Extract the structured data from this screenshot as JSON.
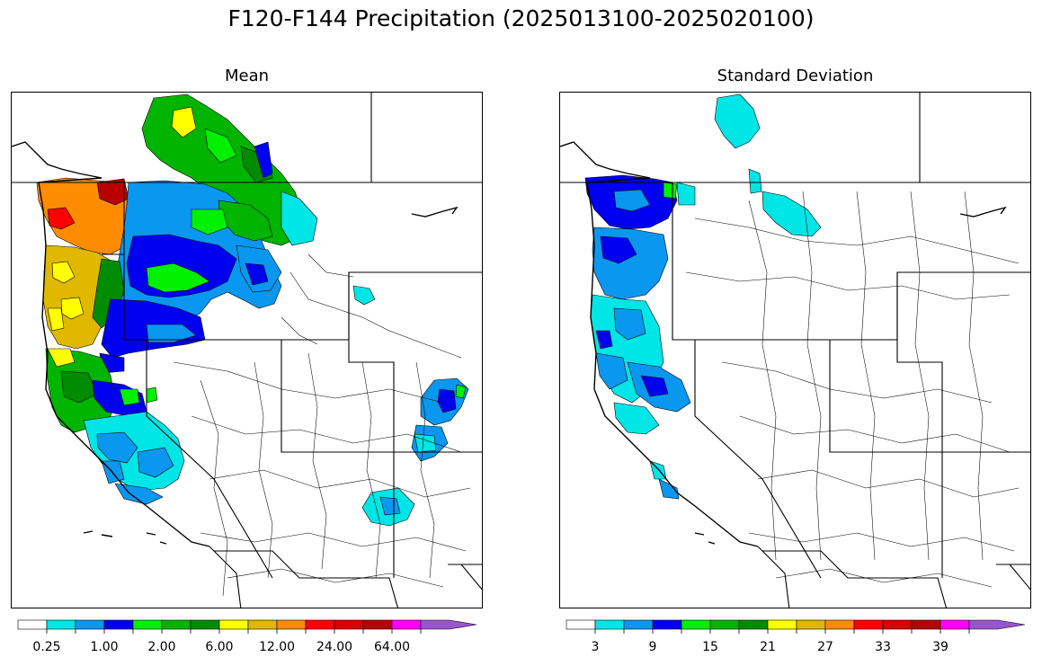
{
  "title": "F120-F144 Precipitation (2025013100-2025020100)",
  "panels": {
    "mean": {
      "title": "Mean"
    },
    "std": {
      "title": "Standard Deviation"
    }
  },
  "colors": [
    "#ffffff",
    "#00e5e5",
    "#0a97f0",
    "#0000f0",
    "#00f000",
    "#00b400",
    "#008c00",
    "#ffff00",
    "#e0b800",
    "#ff8c00",
    "#ff0000",
    "#d80000",
    "#b80000",
    "#ff00ff",
    "#9955cc"
  ],
  "colorbars": {
    "mean": {
      "labels": [
        "0.25",
        "1.00",
        "2.00",
        "6.00",
        "12.00",
        "24.00",
        "64.00"
      ]
    },
    "std": {
      "labels": [
        "3",
        "9",
        "15",
        "21",
        "27",
        "33",
        "39"
      ]
    }
  }
}
